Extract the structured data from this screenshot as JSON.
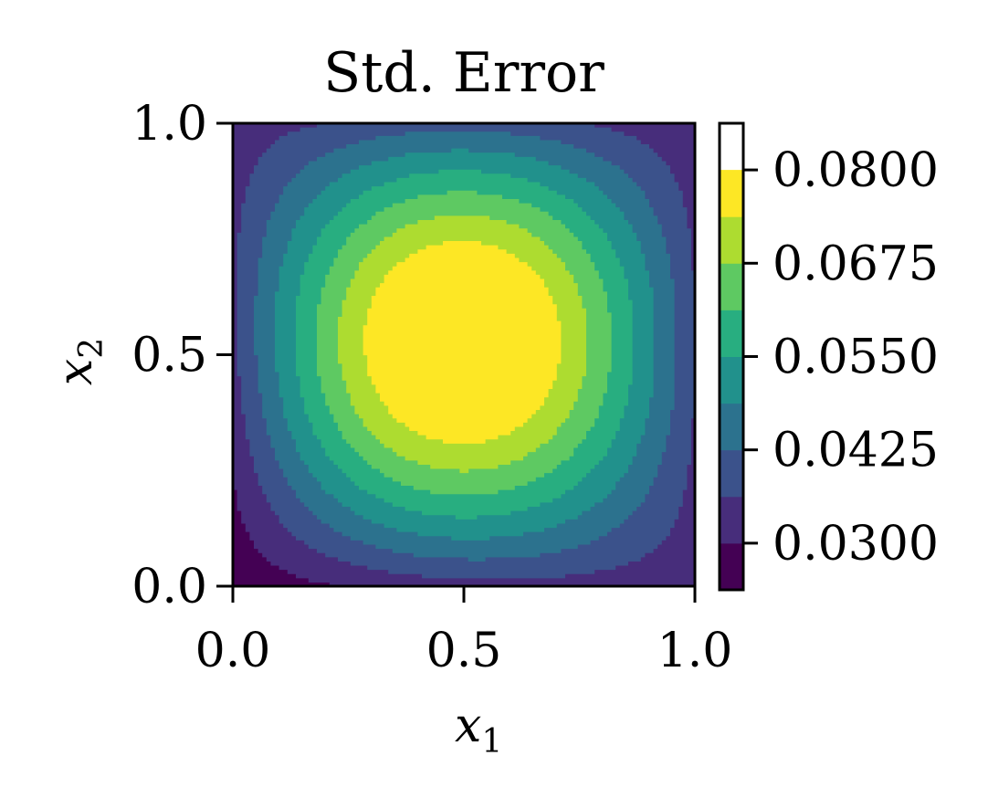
{
  "chart_data": {
    "type": "contour",
    "title": "Std. Error",
    "xlabel": {
      "base": "x",
      "sub": "1"
    },
    "ylabel": {
      "base": "x",
      "sub": "2"
    },
    "xlim": [
      0.0,
      1.0
    ],
    "ylim": [
      0.0,
      1.0
    ],
    "x_ticks": [
      "0.0",
      "0.5",
      "1.0"
    ],
    "y_ticks": [
      "0.0",
      "0.5",
      "1.0"
    ],
    "grid": false,
    "colormap": "viridis",
    "levels": [
      0.02375,
      0.03,
      0.03625,
      0.0425,
      0.04875,
      0.055,
      0.06125,
      0.0675,
      0.07375,
      0.08,
      0.08625
    ],
    "level_colors": [
      "#440154",
      "#472d7b",
      "#3b528b",
      "#2c728e",
      "#21918c",
      "#28ae80",
      "#5ec962",
      "#addc30",
      "#fde725"
    ],
    "colorbar": {
      "tick_values": [
        0.03,
        0.0425,
        0.055,
        0.0675,
        0.08
      ],
      "tick_labels": [
        "0.0300",
        "0.0425",
        "0.0550",
        "0.0675",
        "0.0800"
      ]
    },
    "field": {
      "description_free": true,
      "peak": {
        "x": 0.49,
        "y": 0.56,
        "value": 0.0855
      },
      "corners": {
        "bottom_left": 0.024,
        "bottom_right": 0.031,
        "top_left": 0.03,
        "top_right": 0.029
      }
    }
  }
}
